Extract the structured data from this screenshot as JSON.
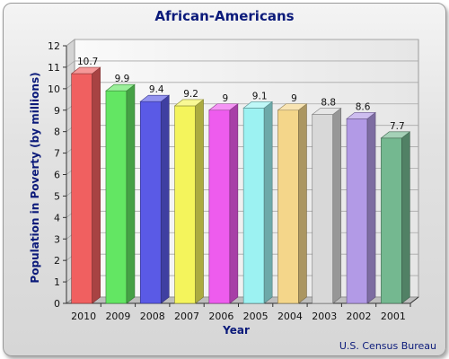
{
  "chart_data": {
    "type": "bar",
    "title": "African-Americans",
    "xlabel": "Year",
    "ylabel": "Population in Poverty (by millions)",
    "source": "U.S. Census Bureau",
    "categories": [
      "2010",
      "2009",
      "2008",
      "2007",
      "2006",
      "2005",
      "2004",
      "2003",
      "2002",
      "2001"
    ],
    "values": [
      10.7,
      9.9,
      9.4,
      9.2,
      9,
      9.1,
      9,
      8.8,
      8.6,
      7.7
    ],
    "value_labels": [
      "10.7",
      "9.9",
      "9.4",
      "9.2",
      "9",
      "9.1",
      "9",
      "8.8",
      "8.6",
      "7.7"
    ],
    "ylim": [
      0,
      12
    ],
    "yticks": [
      "0",
      "1",
      "2",
      "3",
      "4",
      "5",
      "6",
      "7",
      "8",
      "9",
      "10",
      "11",
      "12"
    ],
    "grid": true,
    "colors": [
      "#f06060",
      "#63e663",
      "#5a5ae6",
      "#f4f45c",
      "#ee5cee",
      "#9cf2f2",
      "#f4d68a",
      "#d8d8d8",
      "#b29ae6",
      "#74b890"
    ]
  }
}
